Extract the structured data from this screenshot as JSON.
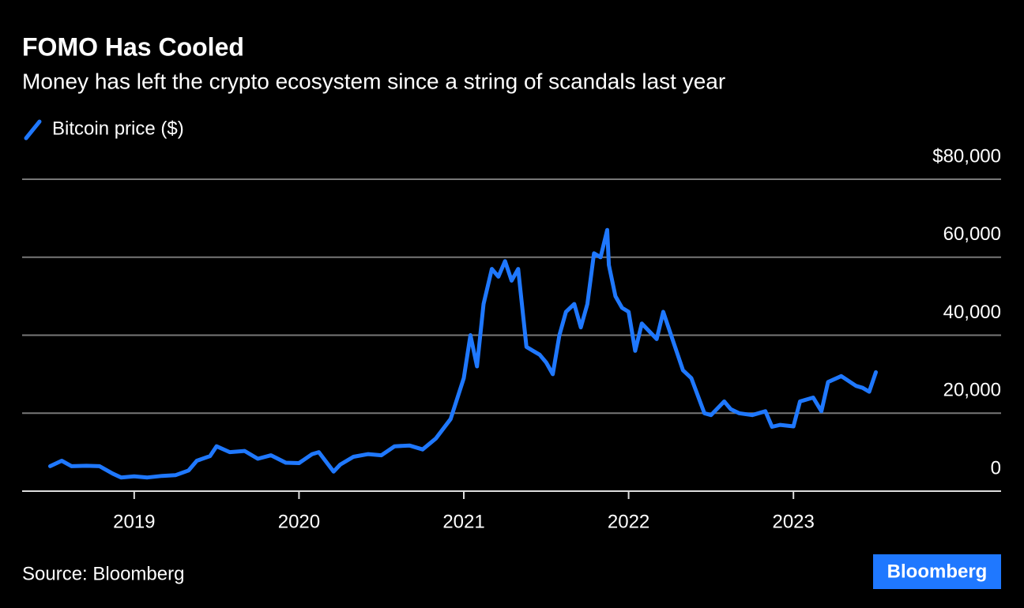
{
  "chart_data": {
    "type": "line",
    "title": "FOMO Has Cooled",
    "subtitle": "Money has left the crypto ecosystem since a string of scandals last year",
    "source": "Source: Bloomberg",
    "brand": "Bloomberg",
    "x": [
      2018.49,
      2018.56,
      2018.62,
      2018.71,
      2018.79,
      2018.87,
      2018.92,
      2019.0,
      2019.08,
      2019.17,
      2019.25,
      2019.33,
      2019.38,
      2019.46,
      2019.5,
      2019.58,
      2019.67,
      2019.75,
      2019.83,
      2019.92,
      2020.0,
      2020.08,
      2020.12,
      2020.21,
      2020.25,
      2020.33,
      2020.42,
      2020.5,
      2020.58,
      2020.67,
      2020.75,
      2020.83,
      2020.92,
      2021.0,
      2021.04,
      2021.08,
      2021.12,
      2021.17,
      2021.21,
      2021.25,
      2021.29,
      2021.33,
      2021.38,
      2021.42,
      2021.46,
      2021.5,
      2021.54,
      2021.58,
      2021.62,
      2021.67,
      2021.71,
      2021.75,
      2021.79,
      2021.83,
      2021.87,
      2021.88,
      2021.92,
      2021.96,
      2022.0,
      2022.04,
      2022.08,
      2022.17,
      2022.21,
      2022.25,
      2022.33,
      2022.38,
      2022.46,
      2022.5,
      2022.58,
      2022.62,
      2022.67,
      2022.75,
      2022.83,
      2022.87,
      2022.92,
      2023.0,
      2023.04,
      2023.12,
      2023.17,
      2023.21,
      2023.29,
      2023.38,
      2023.42,
      2023.46,
      2023.5
    ],
    "series": [
      {
        "name": "Bitcoin price ($)",
        "color": "#1f78ff",
        "values": [
          6400,
          7800,
          6400,
          6500,
          6400,
          4500,
          3500,
          3800,
          3500,
          3900,
          4100,
          5300,
          7800,
          9000,
          11500,
          10000,
          10300,
          8300,
          9200,
          7300,
          7200,
          9500,
          10000,
          5000,
          6800,
          8800,
          9500,
          9200,
          11500,
          11700,
          10700,
          13500,
          18500,
          29000,
          40000,
          32000,
          48000,
          57000,
          55000,
          59000,
          54000,
          57000,
          37000,
          36000,
          35000,
          33000,
          30000,
          40000,
          46000,
          48000,
          42000,
          48000,
          61000,
          60000,
          67000,
          58000,
          50000,
          47000,
          46000,
          36000,
          43000,
          39000,
          46000,
          41000,
          31000,
          29000,
          20000,
          19500,
          23000,
          21000,
          20000,
          19500,
          20500,
          16500,
          17000,
          16600,
          23000,
          24000,
          20500,
          28000,
          29500,
          27000,
          26500,
          25500,
          30500
        ]
      }
    ],
    "xlim": [
      2018.32,
      2024.26
    ],
    "xticks": [
      2019,
      2020,
      2021,
      2022,
      2023
    ],
    "ylim": [
      0,
      80000
    ],
    "yticks": [
      0,
      {
        "value": 20000,
        "label": "20,000"
      },
      {
        "value": 40000,
        "label": "40,000"
      },
      {
        "value": 60000,
        "label": "60,000"
      },
      {
        "value": 80000,
        "label": "$80,000"
      }
    ],
    "grid": true
  }
}
